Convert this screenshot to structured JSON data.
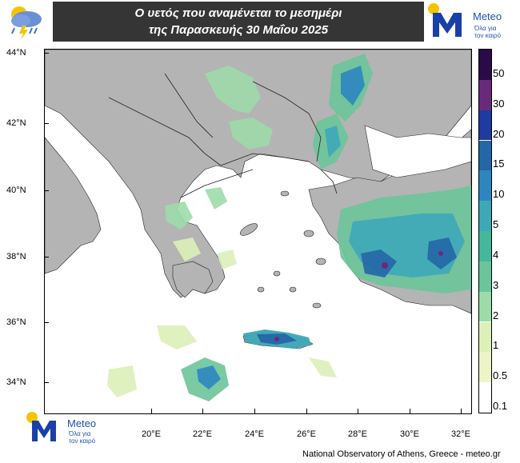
{
  "title": {
    "line1": "Ο υετός που αναμένεται το μεσημέρι",
    "line2": "της Παρασκευής 30 Μαΐου 2025"
  },
  "logo": {
    "name": "Meteo",
    "tagline_1": "Όλα για",
    "tagline_2": "τον καιρό"
  },
  "map": {
    "latitude_labels": [
      "44°N",
      "42°N",
      "40°N",
      "38°N",
      "36°N",
      "34°N"
    ],
    "longitude_labels": [
      "20°E",
      "22°E",
      "24°E",
      "26°E",
      "28°E",
      "30°E",
      "32°E"
    ],
    "land_color": "#b4b4b4",
    "sea_color": "#ffffff"
  },
  "legend": {
    "levels": [
      "50",
      "30",
      "20",
      "15",
      "10",
      "5",
      "4",
      "3",
      "2",
      "1",
      "0.5",
      "0.1"
    ],
    "colors": [
      "#2a0a48",
      "#6a2a7a",
      "#1f3aa0",
      "#2466a8",
      "#2e86c0",
      "#3ea8b8",
      "#45b89a",
      "#6cc49a",
      "#9cdca8",
      "#dcf0b8",
      "#ecf4c8",
      "#ffffff"
    ]
  },
  "credit": "National Observatory of Athens, Greece - meteo.gr"
}
